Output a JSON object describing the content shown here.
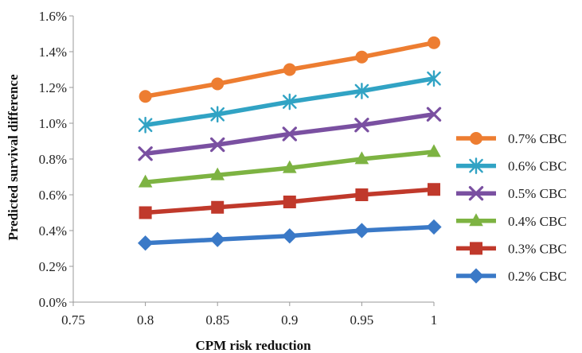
{
  "chart_data": {
    "type": "line",
    "xlabel": "CPM risk reduction",
    "ylabel": "Predicted survival difference",
    "xlim": [
      0.75,
      1
    ],
    "ylim": [
      0,
      1.6
    ],
    "x_ticks": [
      "0.75",
      "0.8",
      "0.85",
      "0.9",
      "0.95",
      "1"
    ],
    "y_ticks": [
      "0.0%",
      "0.2%",
      "0.4%",
      "0.6%",
      "0.8%",
      "1.0%",
      "1.2%",
      "1.4%",
      "1.6%"
    ],
    "grid": false,
    "legend_position": "right",
    "x": [
      0.8,
      0.85,
      0.9,
      0.95,
      1
    ],
    "series": [
      {
        "name": "0.7% CBC",
        "color": "#ED7D31",
        "marker": "circle",
        "values": [
          1.15,
          1.22,
          1.3,
          1.37,
          1.45
        ]
      },
      {
        "name": "0.6% CBC",
        "color": "#31A3C4",
        "marker": "star",
        "values": [
          0.99,
          1.05,
          1.12,
          1.18,
          1.25
        ]
      },
      {
        "name": "0.5% CBC",
        "color": "#7A50A1",
        "marker": "x",
        "values": [
          0.83,
          0.88,
          0.94,
          0.99,
          1.05
        ]
      },
      {
        "name": "0.4% CBC",
        "color": "#7DB342",
        "marker": "triangle",
        "values": [
          0.67,
          0.71,
          0.75,
          0.8,
          0.84
        ]
      },
      {
        "name": "0.3% CBC",
        "color": "#C0392B",
        "marker": "square",
        "values": [
          0.5,
          0.53,
          0.56,
          0.6,
          0.63
        ]
      },
      {
        "name": "0.2% CBC",
        "color": "#3A79C7",
        "marker": "diamond",
        "values": [
          0.33,
          0.35,
          0.37,
          0.4,
          0.42
        ]
      }
    ]
  }
}
